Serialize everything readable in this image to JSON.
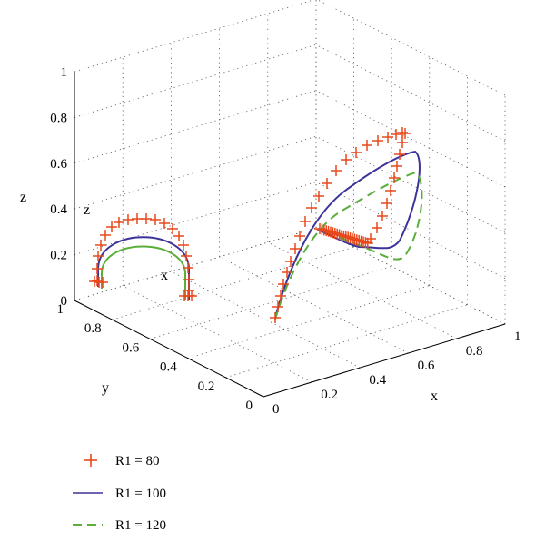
{
  "chart_data": {
    "type": "line",
    "projection": "3d",
    "xlabel": "x",
    "ylabel": "y",
    "zlabel": "z",
    "xlim": [
      0,
      1
    ],
    "ylim": [
      0,
      1
    ],
    "zlim": [
      0,
      1
    ],
    "x_ticks": [
      "0",
      "0.2",
      "0.4",
      "0.6",
      "0.8",
      "1"
    ],
    "y_ticks": [
      "0",
      "0.2",
      "0.4",
      "0.6",
      "0.8",
      "1"
    ],
    "z_ticks": [
      "0",
      "0.2",
      "0.4",
      "0.6",
      "0.8",
      "1"
    ],
    "inset": {
      "xlabel": "x",
      "zlabel": "z"
    },
    "grid": true,
    "legend_position": "bottom-left",
    "colors": {
      "r80": "#e8481c",
      "r100": "#3c3399",
      "r120": "#5aae3a"
    },
    "series": [
      {
        "name": "R1 = 80",
        "style": "plus-markers"
      },
      {
        "name": "R1 = 100",
        "style": "solid"
      },
      {
        "name": "R1 = 120",
        "style": "dashed"
      }
    ]
  }
}
